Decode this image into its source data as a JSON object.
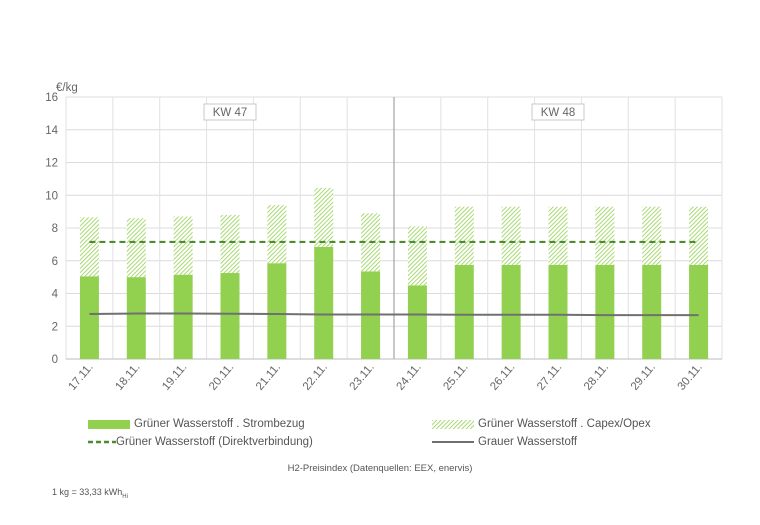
{
  "chart_data": {
    "type": "bar",
    "ylabel": "€/kg",
    "ylim": [
      0,
      16
    ],
    "yticks": [
      0,
      2,
      4,
      6,
      8,
      10,
      12,
      14,
      16
    ],
    "grid": true,
    "categories": [
      "17.11.",
      "18.11.",
      "19.11.",
      "20.11.",
      "21.11.",
      "22.11.",
      "23.11.",
      "24.11.",
      "25.11.",
      "26.11.",
      "27.11.",
      "28.11.",
      "29.11.",
      "30.11."
    ],
    "week_labels": [
      {
        "label": "KW 47",
        "from": 0,
        "to": 6
      },
      {
        "label": "KW 48",
        "from": 7,
        "to": 13
      }
    ],
    "series": [
      {
        "name": "Grüner Wasserstoff . Strombezug",
        "kind": "bar",
        "values": [
          5.05,
          5.0,
          5.15,
          5.25,
          5.85,
          6.85,
          5.35,
          4.5,
          5.75,
          5.75,
          5.75,
          5.75,
          5.75,
          5.75
        ]
      },
      {
        "name": "Grüner Wasserstoff . Capex/Opex",
        "kind": "bar-stacked-hatched",
        "values": [
          3.6,
          3.6,
          3.55,
          3.55,
          3.55,
          3.6,
          3.55,
          3.6,
          3.55,
          3.55,
          3.55,
          3.55,
          3.55,
          3.55
        ]
      },
      {
        "name": "Grüner Wasserstoff (Direktverbindung)",
        "kind": "dashed-line",
        "values": [
          7.15,
          7.15,
          7.15,
          7.15,
          7.15,
          7.15,
          7.15,
          7.15,
          7.15,
          7.15,
          7.15,
          7.15,
          7.15,
          7.15
        ]
      },
      {
        "name": "Grauer Wasserstoff",
        "kind": "line",
        "values": [
          2.75,
          2.78,
          2.78,
          2.76,
          2.75,
          2.72,
          2.72,
          2.72,
          2.7,
          2.7,
          2.7,
          2.68,
          2.68,
          2.68
        ]
      }
    ],
    "legend_position": "bottom",
    "colors": {
      "green": "#92d050",
      "hatch": "#92d050",
      "dashed": "#4e8a2e",
      "grey": "#707070"
    }
  },
  "caption": "H2-Preisindex (Datenquellen: EEX, enervis)",
  "footnote": {
    "main": "1 kg = 33,33 kWh",
    "sub": "Hi"
  }
}
